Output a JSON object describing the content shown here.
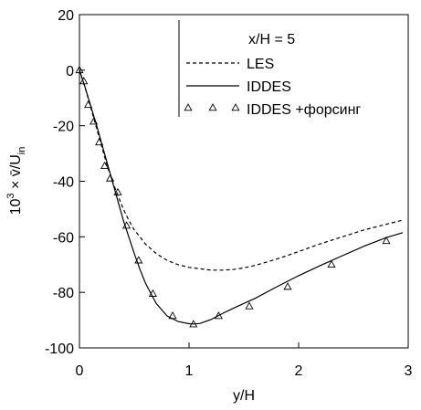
{
  "chart_data": {
    "type": "line",
    "annotation": "x/H = 5",
    "xlabel": "y/H",
    "ylabel_main": "10",
    "ylabel_exp": "3",
    "ylabel_rest": " × v̄/U",
    "ylabel_sub": "in",
    "xlim": [
      0,
      3
    ],
    "ylim": [
      -100,
      20
    ],
    "xticks": [
      {
        "value": 0,
        "label": "0"
      },
      {
        "value": 1,
        "label": "1"
      },
      {
        "value": 2,
        "label": "2"
      },
      {
        "value": 3,
        "label": "3"
      }
    ],
    "yticks": [
      {
        "value": 20,
        "label": "20"
      },
      {
        "value": 0,
        "label": "0"
      },
      {
        "value": -20,
        "label": "-20"
      },
      {
        "value": -40,
        "label": "-40"
      },
      {
        "value": -60,
        "label": "-60"
      },
      {
        "value": -80,
        "label": "-80"
      },
      {
        "value": -100,
        "label": "-100"
      }
    ],
    "series": [
      {
        "name": "LES",
        "style": "dashed",
        "color": "#000000",
        "x": [
          0,
          0.05,
          0.1,
          0.15,
          0.2,
          0.25,
          0.3,
          0.35,
          0.4,
          0.45,
          0.5,
          0.6,
          0.7,
          0.8,
          0.9,
          1.0,
          1.1,
          1.2,
          1.3,
          1.4,
          1.5,
          1.6,
          1.7,
          1.8,
          1.9,
          2.0,
          2.2,
          2.4,
          2.6,
          2.8,
          2.95
        ],
        "y": [
          0,
          -6,
          -13,
          -20,
          -27,
          -34,
          -40,
          -45,
          -50,
          -54,
          -57.5,
          -62.5,
          -66,
          -68.5,
          -70,
          -71,
          -71.5,
          -72,
          -72,
          -71.8,
          -71.2,
          -70.3,
          -69.2,
          -68,
          -66.7,
          -65.3,
          -62.5,
          -60,
          -57.5,
          -55.5,
          -54
        ]
      },
      {
        "name": "IDDES",
        "style": "solid",
        "color": "#000000",
        "x": [
          0,
          0.05,
          0.1,
          0.15,
          0.2,
          0.25,
          0.3,
          0.35,
          0.4,
          0.45,
          0.5,
          0.55,
          0.6,
          0.7,
          0.8,
          0.9,
          1.0,
          1.05,
          1.1,
          1.2,
          1.3,
          1.4,
          1.5,
          1.6,
          1.8,
          2.0,
          2.2,
          2.4,
          2.6,
          2.8,
          2.95
        ],
        "y": [
          0,
          -6,
          -12.5,
          -19,
          -26,
          -33,
          -40,
          -47,
          -54,
          -60,
          -66,
          -71.5,
          -76.5,
          -84,
          -88.5,
          -90.5,
          -91.3,
          -91.4,
          -91.2,
          -89.8,
          -87.7,
          -85.8,
          -84,
          -82.2,
          -78,
          -74,
          -70.3,
          -66.8,
          -63.3,
          -60.3,
          -58.5
        ]
      },
      {
        "name": "IDDES +форсинг",
        "style": "triangles",
        "color": "#000000",
        "x": [
          0,
          0.04,
          0.08,
          0.13,
          0.18,
          0.23,
          0.28,
          0.35,
          0.43,
          0.54,
          0.67,
          0.85,
          1.04,
          1.27,
          1.55,
          1.9,
          2.3,
          2.8
        ],
        "y": [
          0,
          -4,
          -12.5,
          -18.5,
          -26,
          -34.5,
          -39,
          -44,
          -56,
          -68.5,
          -80.5,
          -88.5,
          -91.5,
          -88.5,
          -85,
          -78,
          -70,
          -61.5
        ]
      }
    ],
    "legend": [
      "LES",
      "IDDES",
      "IDDES +форсинг"
    ],
    "legend_position": "top-right",
    "grid": false
  }
}
